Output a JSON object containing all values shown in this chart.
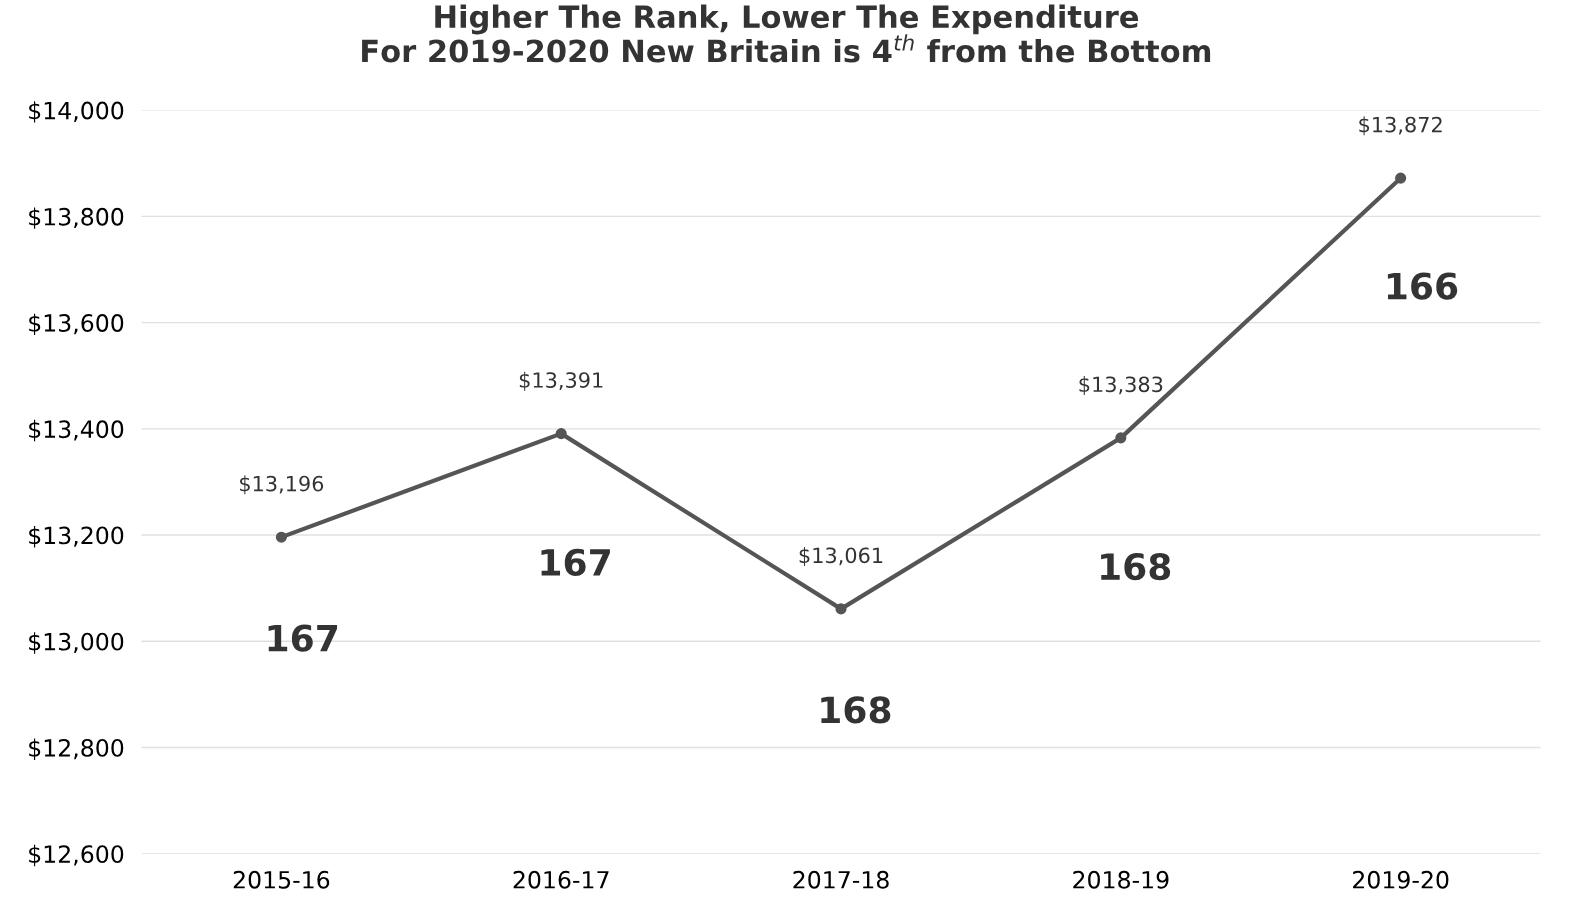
{
  "chart_data": {
    "type": "line",
    "title": "Higher The Rank, Lower The Expenditure\nFor 2019-2020 New Britain is 4$^{th}$ from the Bottom",
    "categories": [
      "2015-16",
      "2016-17",
      "2017-18",
      "2018-19",
      "2019-20"
    ],
    "series": [
      {
        "color": "#555555",
        "values": [
          13196,
          13391,
          13061,
          13383,
          13872
        ],
        "value_labels": [
          "$13,196",
          "$13,391",
          "$13,061",
          "$13,383",
          "$13,872"
        ]
      }
    ],
    "ylim": [
      12600,
      14000
    ],
    "yticks": [
      {
        "value": 12600,
        "label": "$12,600"
      },
      {
        "value": 12800,
        "label": "$12,800"
      },
      {
        "value": 13000,
        "label": "$13,000"
      },
      {
        "value": 13200,
        "label": "$13,200"
      },
      {
        "value": 13400,
        "label": "$13,400"
      },
      {
        "value": 13600,
        "label": "$13,600"
      },
      {
        "value": 13800,
        "label": "$13,800"
      },
      {
        "value": 14000,
        "label": "$14,000"
      }
    ],
    "grid": "y",
    "marker": "circle",
    "line_style": "solid",
    "annotations": [
      "167",
      "167",
      "168",
      "168",
      "166"
    ]
  }
}
